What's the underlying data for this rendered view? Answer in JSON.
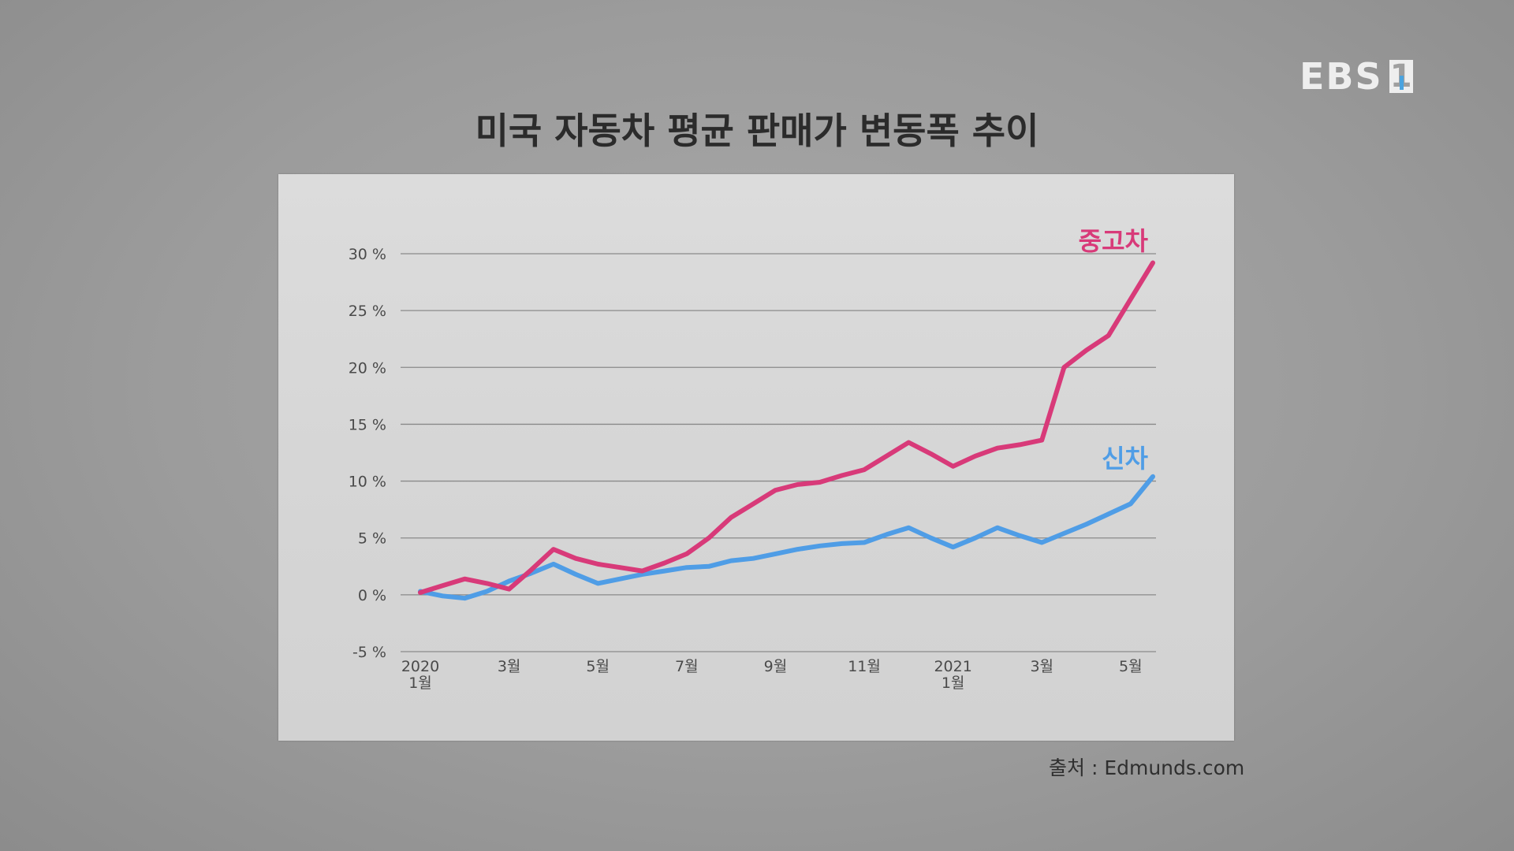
{
  "logo": {
    "text": "EBS",
    "box": "1"
  },
  "source": "출처 : Edmunds.com",
  "colors": {
    "used": "#d83a79",
    "new": "#4f9de6",
    "grid": "#8a8a8a",
    "text": "#4a4a4a"
  },
  "chart_data": {
    "type": "line",
    "title": "미국 자동차 평균 판매가 변동폭 추이",
    "ylim": [
      -5,
      30
    ],
    "yticks": [
      {
        "value": 30,
        "label": "30 %"
      },
      {
        "value": 25,
        "label": "25 %"
      },
      {
        "value": 20,
        "label": "20 %"
      },
      {
        "value": 15,
        "label": "15 %"
      },
      {
        "value": 10,
        "label": "10 %"
      },
      {
        "value": 5,
        "label": "5 %"
      },
      {
        "value": 0,
        "label": "0 %"
      },
      {
        "value": -5,
        "label": "-5 %"
      }
    ],
    "xticks": [
      {
        "index": 0,
        "lines": [
          "2020",
          "1월"
        ]
      },
      {
        "index": 4,
        "lines": [
          "3월"
        ]
      },
      {
        "index": 8,
        "lines": [
          "5월"
        ]
      },
      {
        "index": 12,
        "lines": [
          "7월"
        ]
      },
      {
        "index": 16,
        "lines": [
          "9월"
        ]
      },
      {
        "index": 20,
        "lines": [
          "11월"
        ]
      },
      {
        "index": 24,
        "lines": [
          "2021",
          "1월"
        ]
      },
      {
        "index": 28,
        "lines": [
          "3월"
        ]
      },
      {
        "index": 32,
        "lines": [
          "5월"
        ]
      }
    ],
    "grid": true,
    "series": [
      {
        "name": "중고차",
        "values": [
          0.2,
          0.8,
          1.4,
          1.0,
          0.5,
          2.2,
          4.0,
          3.2,
          2.7,
          2.4,
          2.1,
          2.8,
          3.6,
          5.0,
          6.8,
          8.0,
          9.2,
          9.7,
          9.9,
          10.5,
          11.0,
          12.2,
          13.4,
          12.4,
          11.3,
          12.2,
          12.9,
          13.2,
          13.6,
          20.0,
          21.5,
          22.8,
          26.0,
          29.2
        ]
      },
      {
        "name": "신차",
        "values": [
          0.3,
          -0.1,
          -0.3,
          0.3,
          1.2,
          1.9,
          2.7,
          1.8,
          1.0,
          1.4,
          1.8,
          2.1,
          2.4,
          2.5,
          3.0,
          3.2,
          3.6,
          4.0,
          4.3,
          4.5,
          4.6,
          5.3,
          5.9,
          5.0,
          4.2,
          5.0,
          5.9,
          5.2,
          4.6,
          5.4,
          6.2,
          7.1,
          8.0,
          10.4
        ]
      }
    ]
  }
}
